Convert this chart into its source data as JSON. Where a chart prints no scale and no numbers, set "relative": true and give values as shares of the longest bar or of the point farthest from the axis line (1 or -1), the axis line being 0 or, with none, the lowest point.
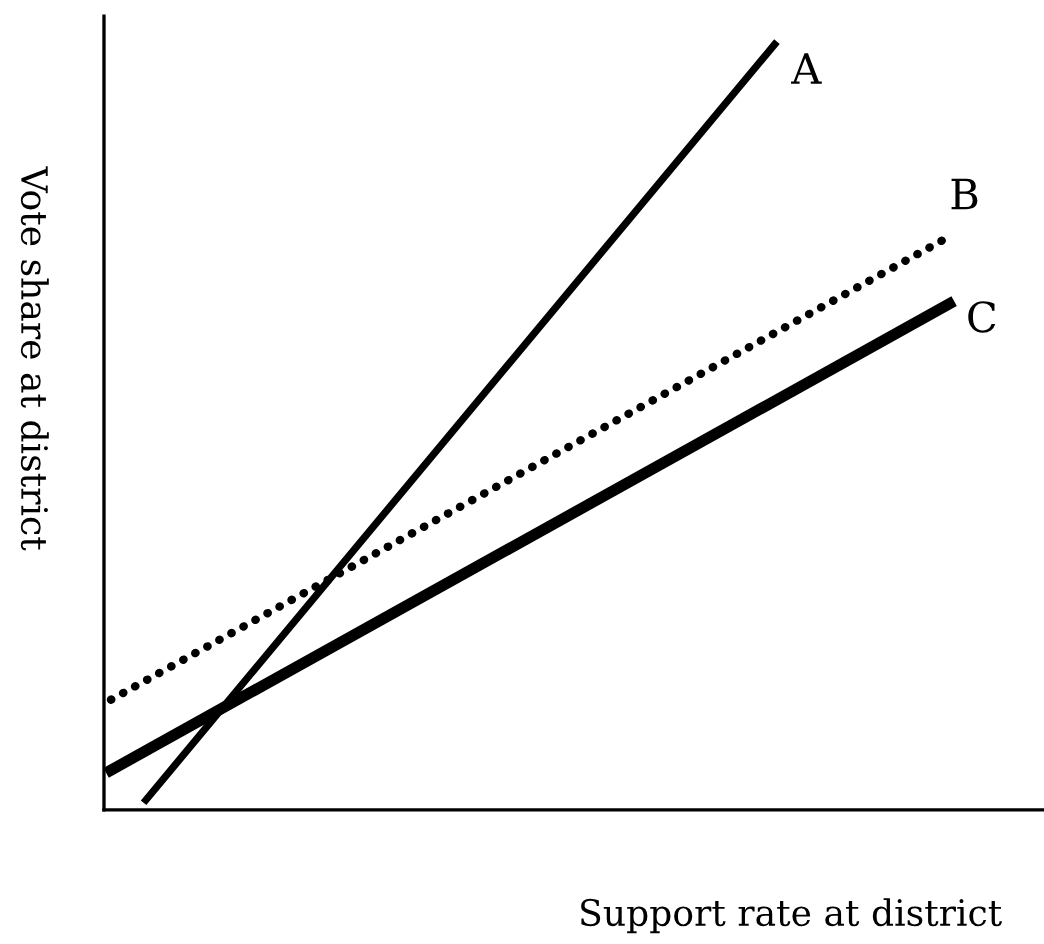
{
  "chart_data": {
    "type": "line",
    "relative": true,
    "xlabel": "Support rate at district",
    "ylabel": "Vote share at district",
    "categories": [
      null,
      null,
      null,
      null,
      null,
      null,
      null,
      null,
      null,
      null,
      null,
      null,
      null,
      null,
      null,
      null,
      null,
      null,
      null,
      null,
      null,
      null,
      null,
      null,
      null
    ],
    "series": [
      {
        "name": "A",
        "color": "#000000",
        "line_style": "solid",
        "values": [
          null,
          0.013,
          null,
          null,
          null,
          null,
          null,
          null,
          null,
          null,
          null,
          null,
          null,
          null,
          null,
          null,
          null,
          null,
          null,
          1.0,
          null,
          null,
          null,
          null,
          null
        ]
      },
      {
        "name": "B",
        "color": "#000000",
        "line_style": "dotted",
        "values": [
          0.144,
          null,
          null,
          null,
          null,
          null,
          null,
          null,
          null,
          null,
          null,
          null,
          null,
          null,
          null,
          null,
          null,
          null,
          null,
          null,
          null,
          null,
          null,
          null,
          0.749
        ]
      },
      {
        "name": "C",
        "color": "#000000",
        "line_style": "solid",
        "values": [
          0.052,
          null,
          null,
          null,
          null,
          null,
          null,
          null,
          null,
          null,
          null,
          null,
          null,
          null,
          null,
          null,
          null,
          null,
          null,
          null,
          null,
          null,
          null,
          null,
          0.661
        ]
      }
    ],
    "marker": "none"
  }
}
